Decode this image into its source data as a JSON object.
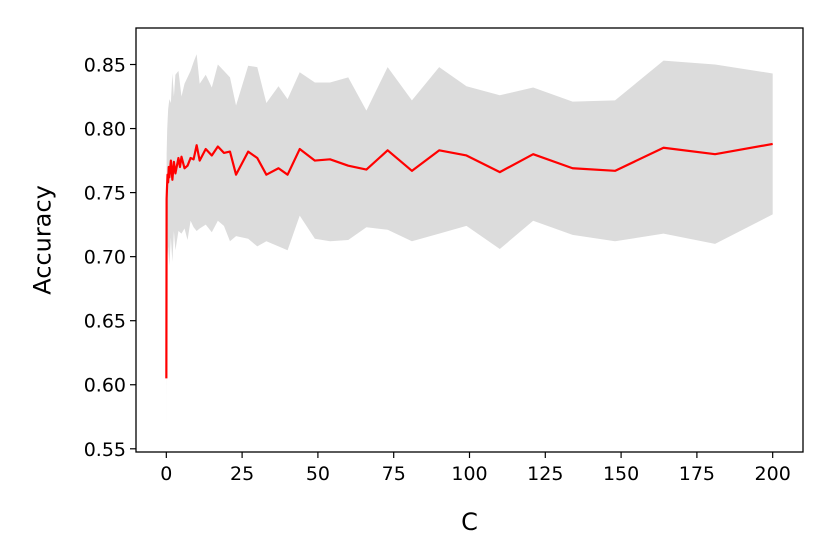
{
  "chart_data": {
    "type": "line",
    "xlabel": "C",
    "ylabel": "Accuracy",
    "xlim": [
      -10,
      210
    ],
    "ylim": [
      0.5475,
      0.8785
    ],
    "grid": false,
    "x_ticks": [
      0,
      25,
      50,
      75,
      100,
      125,
      150,
      175,
      200
    ],
    "x_tick_labels": [
      "0",
      "25",
      "50",
      "75",
      "100",
      "125",
      "150",
      "175",
      "200"
    ],
    "y_ticks": [
      0.55,
      0.6,
      0.65,
      0.7,
      0.75,
      0.8,
      0.85
    ],
    "y_tick_labels": [
      "0.55",
      "0.60",
      "0.65",
      "0.70",
      "0.75",
      "0.80",
      "0.85"
    ],
    "colors": {
      "line": "#ff0000",
      "band": "#dcdcdc"
    },
    "series": [
      {
        "type": "line",
        "x": [
          0.01,
          0.1,
          0.2,
          0.4,
          0.6,
          0.8,
          1.0,
          1.5,
          2.0,
          2.5,
          3.0,
          3.5,
          4.0,
          4.5,
          5.0,
          6.0,
          7.0,
          8.0,
          9.0,
          10.0,
          11.0,
          13.0,
          15.0,
          17.0,
          19.0,
          21.0,
          23.0,
          27.0,
          30.0,
          33.0,
          37.0,
          40.0,
          44.0,
          49.0,
          54.0,
          60.0,
          66.0,
          73.0,
          81.0,
          90.0,
          99.0,
          110.0,
          121.0,
          134.0,
          148.0,
          164.0,
          181.0,
          200.0
        ],
        "y": [
          0.605,
          0.745,
          0.752,
          0.764,
          0.758,
          0.77,
          0.762,
          0.775,
          0.76,
          0.774,
          0.765,
          0.771,
          0.777,
          0.77,
          0.778,
          0.769,
          0.771,
          0.777,
          0.776,
          0.787,
          0.775,
          0.784,
          0.779,
          0.786,
          0.781,
          0.782,
          0.764,
          0.782,
          0.777,
          0.764,
          0.769,
          0.764,
          0.784,
          0.775,
          0.776,
          0.771,
          0.768,
          0.783,
          0.767,
          0.783,
          0.779,
          0.766,
          0.78,
          0.769,
          0.767,
          0.785,
          0.78,
          0.788
        ]
      }
    ],
    "band": {
      "x": [
        0.01,
        0.1,
        0.3,
        0.6,
        1.0,
        1.5,
        2.0,
        2.5,
        3.0,
        4.0,
        5.0,
        6.0,
        7.0,
        8.0,
        9.0,
        10.0,
        11.0,
        13.0,
        15.0,
        17.0,
        19.0,
        21.0,
        23.0,
        27.0,
        30.0,
        33.0,
        37.0,
        40.0,
        44.0,
        49.0,
        54.0,
        60.0,
        66.0,
        73.0,
        81.0,
        90.0,
        99.0,
        110.0,
        121.0,
        134.0,
        148.0,
        164.0,
        181.0,
        200.0
      ],
      "upper": [
        0.65,
        0.78,
        0.8,
        0.815,
        0.823,
        0.82,
        0.843,
        0.825,
        0.842,
        0.845,
        0.825,
        0.835,
        0.84,
        0.845,
        0.852,
        0.858,
        0.835,
        0.842,
        0.832,
        0.85,
        0.845,
        0.84,
        0.818,
        0.849,
        0.848,
        0.82,
        0.833,
        0.823,
        0.844,
        0.836,
        0.836,
        0.84,
        0.814,
        0.848,
        0.822,
        0.848,
        0.833,
        0.826,
        0.832,
        0.821,
        0.822,
        0.853,
        0.85,
        0.843
      ],
      "lower": [
        0.562,
        0.708,
        0.698,
        0.708,
        0.693,
        0.715,
        0.696,
        0.72,
        0.705,
        0.72,
        0.718,
        0.722,
        0.713,
        0.728,
        0.723,
        0.72,
        0.722,
        0.725,
        0.719,
        0.728,
        0.724,
        0.712,
        0.716,
        0.714,
        0.708,
        0.712,
        0.708,
        0.705,
        0.732,
        0.714,
        0.712,
        0.713,
        0.723,
        0.721,
        0.712,
        0.718,
        0.724,
        0.706,
        0.728,
        0.717,
        0.712,
        0.718,
        0.71,
        0.733
      ]
    }
  }
}
